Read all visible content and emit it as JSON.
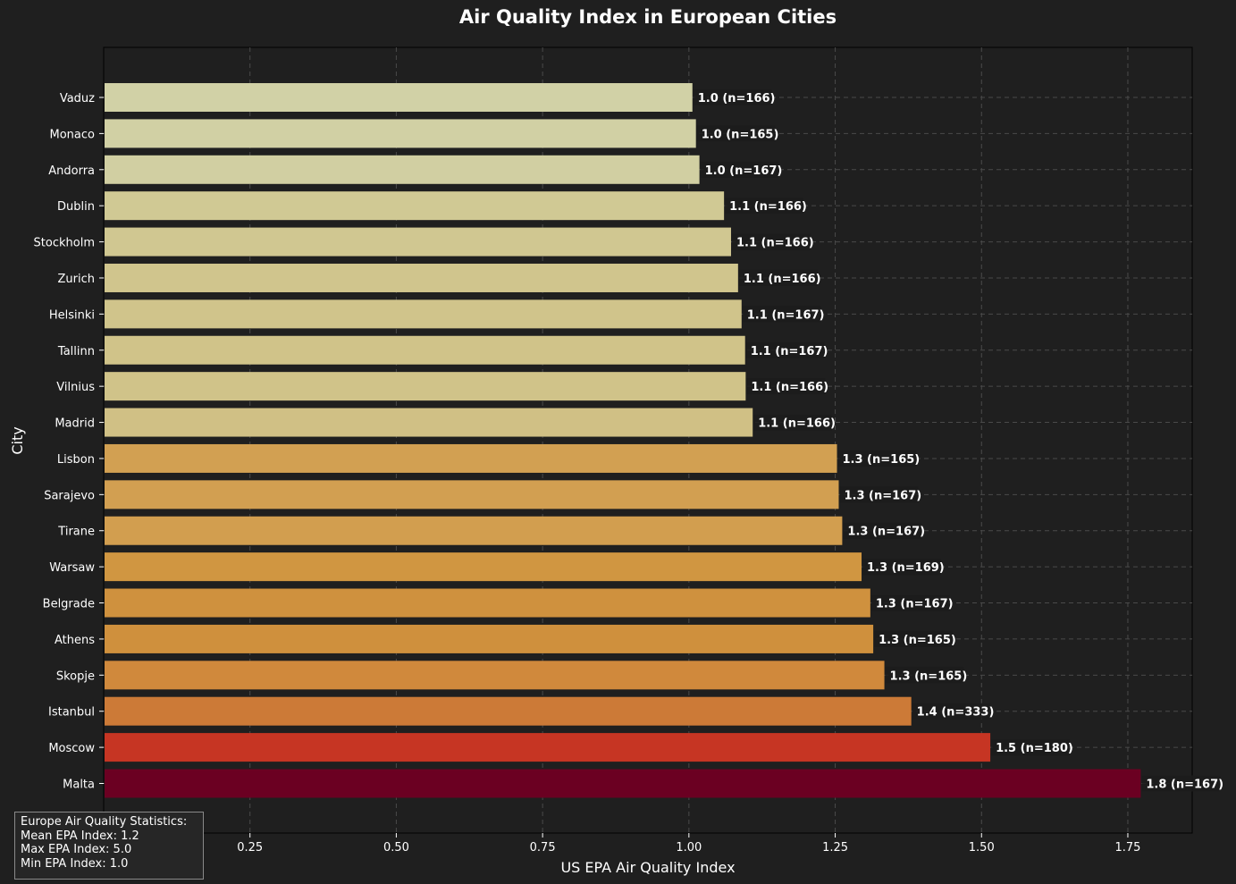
{
  "chart_data": {
    "type": "bar",
    "orientation": "horizontal",
    "title": "Air Quality Index in European Cities",
    "xlabel": "US EPA Air Quality Index",
    "ylabel": "City",
    "xlim": [
      0.0,
      1.86
    ],
    "xticks": [
      0.25,
      0.5,
      0.75,
      1.0,
      1.25,
      1.5,
      1.75
    ],
    "xtick_labels": [
      "0.25",
      "0.50",
      "0.75",
      "1.00",
      "1.25",
      "1.50",
      "1.75"
    ],
    "grid": true,
    "categories": [
      "Vaduz",
      "Monaco",
      "Andorra",
      "Dublin",
      "Stockholm",
      "Zurich",
      "Helsinki",
      "Tallinn",
      "Vilnius",
      "Madrid",
      "Lisbon",
      "Sarajevo",
      "Tirane",
      "Warsaw",
      "Belgrade",
      "Athens",
      "Skopje",
      "Istanbul",
      "Moscow",
      "Malta"
    ],
    "values": [
      1.006,
      1.012,
      1.018,
      1.06,
      1.072,
      1.084,
      1.09,
      1.096,
      1.097,
      1.109,
      1.253,
      1.256,
      1.262,
      1.295,
      1.31,
      1.315,
      1.334,
      1.38,
      1.515,
      1.772
    ],
    "bar_labels": [
      "1.0 (n=166)",
      "1.0 (n=165)",
      "1.0 (n=167)",
      "1.1 (n=166)",
      "1.1 (n=166)",
      "1.1 (n=166)",
      "1.1 (n=167)",
      "1.1 (n=167)",
      "1.1 (n=166)",
      "1.1 (n=166)",
      "1.3 (n=165)",
      "1.3 (n=167)",
      "1.3 (n=167)",
      "1.3 (n=169)",
      "1.3 (n=167)",
      "1.3 (n=165)",
      "1.3 (n=165)",
      "1.4 (n=333)",
      "1.5 (n=180)",
      "1.8 (n=167)"
    ],
    "colors": [
      "#d1d1a6",
      "#d1d0a4",
      "#d1cfa2",
      "#d0c994",
      "#d0c791",
      "#d0c58d",
      "#d0c48b",
      "#d0c389",
      "#d0c389",
      "#d0c085",
      "#d2a052",
      "#d29f51",
      "#d29e4f",
      "#d09641",
      "#cf913e",
      "#cf903d",
      "#d0893c",
      "#cc7a37",
      "#c63523",
      "#6b0022"
    ]
  },
  "stats": {
    "title": "Europe Air Quality Statistics:",
    "mean": "Mean EPA Index: 1.2",
    "max": "Max EPA Index: 5.0",
    "min": "Min EPA Index: 1.0"
  }
}
